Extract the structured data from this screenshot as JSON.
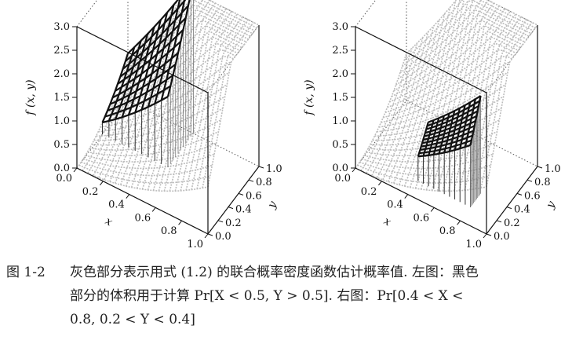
{
  "figure": {
    "label": "图 1-2",
    "caption_line1": "灰色部分表示用式 (1.2) 的联合概率密度函数估计概率值. 左图：黑色",
    "caption_line2": "部分的体积用于计算 Pr[X < 0.5, Y > 0.5].  右图：Pr[0.4 < X <",
    "caption_line3": "0.8, 0.2 < Y < 0.4]"
  },
  "chart_data": [
    {
      "type": "surface3d",
      "zlabel": "f (x, y)",
      "xlabel": "x",
      "ylabel": "y",
      "z_ticks": [
        "0.0",
        "0.5",
        "1.0",
        "1.5",
        "2.0",
        "2.5",
        "3.0"
      ],
      "x_ticks": [
        "0.0",
        "0.2",
        "0.4",
        "0.6",
        "0.8",
        "1.0"
      ],
      "y_ticks": [
        "0.0",
        "0.2",
        "0.4",
        "0.6",
        "0.8",
        "1.0"
      ],
      "xlim": [
        0,
        1
      ],
      "ylim": [
        0,
        1
      ],
      "zlim": [
        0,
        3
      ],
      "surface_color": "#bdbdbd",
      "highlight_color": "#111111",
      "highlight_region": {
        "x": [
          0,
          0.5
        ],
        "y": [
          0.5,
          1
        ]
      }
    },
    {
      "type": "surface3d",
      "zlabel": "f (x, y)",
      "xlabel": "x",
      "ylabel": "y",
      "z_ticks": [
        "0.0",
        "0.5",
        "1.0",
        "1.5",
        "2.0",
        "2.5",
        "3.0"
      ],
      "x_ticks": [
        "0.0",
        "0.2",
        "0.4",
        "0.6",
        "0.8",
        "1.0"
      ],
      "y_ticks": [
        "0.0",
        "0.2",
        "0.4",
        "0.6",
        "0.8",
        "1.0"
      ],
      "xlim": [
        0,
        1
      ],
      "ylim": [
        0,
        1
      ],
      "zlim": [
        0,
        3
      ],
      "surface_color": "#bdbdbd",
      "highlight_color": "#111111",
      "highlight_region": {
        "x": [
          0.4,
          0.8
        ],
        "y": [
          0.2,
          0.4
        ]
      }
    }
  ]
}
